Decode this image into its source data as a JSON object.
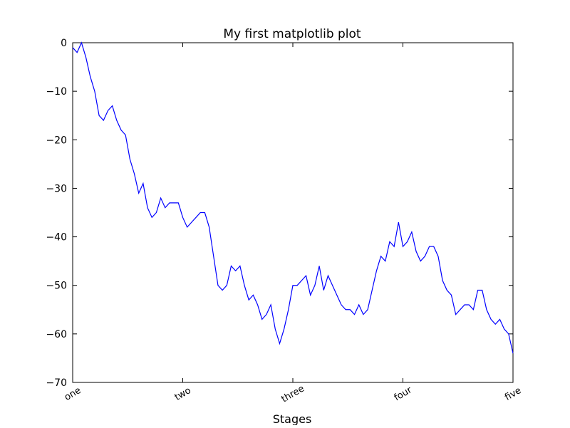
{
  "chart_data": {
    "type": "line",
    "title": "My first matplotlib plot",
    "x_label": "Stages",
    "x": [
      0,
      10,
      20,
      30,
      40,
      50,
      60,
      70,
      80,
      90,
      100,
      110,
      120,
      130,
      140,
      150,
      160,
      170,
      180,
      190,
      200,
      210,
      220,
      230,
      240,
      250,
      260,
      270,
      280,
      290,
      300,
      310,
      320,
      330,
      340,
      350,
      360,
      370,
      380,
      390,
      400,
      410,
      420,
      430,
      440,
      450,
      460,
      470,
      480,
      490,
      500,
      510,
      520,
      530,
      540,
      550,
      560,
      570,
      580,
      590,
      600,
      610,
      620,
      630,
      640,
      650,
      660,
      670,
      680,
      690,
      700,
      710,
      720,
      730,
      740,
      750,
      760,
      770,
      780,
      790,
      800,
      810,
      820,
      830,
      840,
      850,
      860,
      870,
      880,
      890,
      900,
      910,
      920,
      930,
      940,
      950,
      960,
      970,
      980,
      990,
      1000
    ],
    "series": [
      {
        "color": "#0000ff",
        "values": [
          -1,
          -2,
          0,
          -3,
          -7,
          -10,
          -15,
          -16,
          -14,
          -13,
          -16,
          -18,
          -19,
          -24,
          -27,
          -31,
          -29,
          -34,
          -36,
          -35,
          -32,
          -34,
          -33,
          -33,
          -33,
          -36,
          -38,
          -37,
          -36,
          -35,
          -35,
          -38,
          -44,
          -50,
          -51,
          -50,
          -46,
          -47,
          -46,
          -50,
          -53,
          -52,
          -54,
          -57,
          -56,
          -54,
          -59,
          -62,
          -59,
          -55,
          -50,
          -50,
          -49,
          -48,
          -52,
          -50,
          -46,
          -51,
          -48,
          -50,
          -52,
          -54,
          -55,
          -55,
          -56,
          -54,
          -56,
          -55,
          -51,
          -47,
          -44,
          -45,
          -41,
          -42,
          -37,
          -42,
          -41,
          -39,
          -43,
          -45,
          -44,
          -42,
          -42,
          -44,
          -49,
          -51,
          -52,
          -56,
          -55,
          -54,
          -54,
          -55,
          -51,
          -51,
          -55,
          -57,
          -58,
          -57,
          -59,
          -60,
          -64
        ]
      }
    ],
    "xlim": [
      0,
      1000
    ],
    "xticks": [
      {
        "value": 0,
        "label": "one"
      },
      {
        "value": 250,
        "label": "two"
      },
      {
        "value": 500,
        "label": "three"
      },
      {
        "value": 750,
        "label": "four"
      },
      {
        "value": 1000,
        "label": "five"
      }
    ],
    "ylim": [
      -70,
      0
    ],
    "yticks": [
      {
        "value": -70,
        "label": "−70"
      },
      {
        "value": -60,
        "label": "−60"
      },
      {
        "value": -50,
        "label": "−50"
      },
      {
        "value": -40,
        "label": "−40"
      },
      {
        "value": -30,
        "label": "−30"
      },
      {
        "value": -20,
        "label": "−20"
      },
      {
        "value": -10,
        "label": "−10"
      },
      0
    ],
    "grid": false
  }
}
